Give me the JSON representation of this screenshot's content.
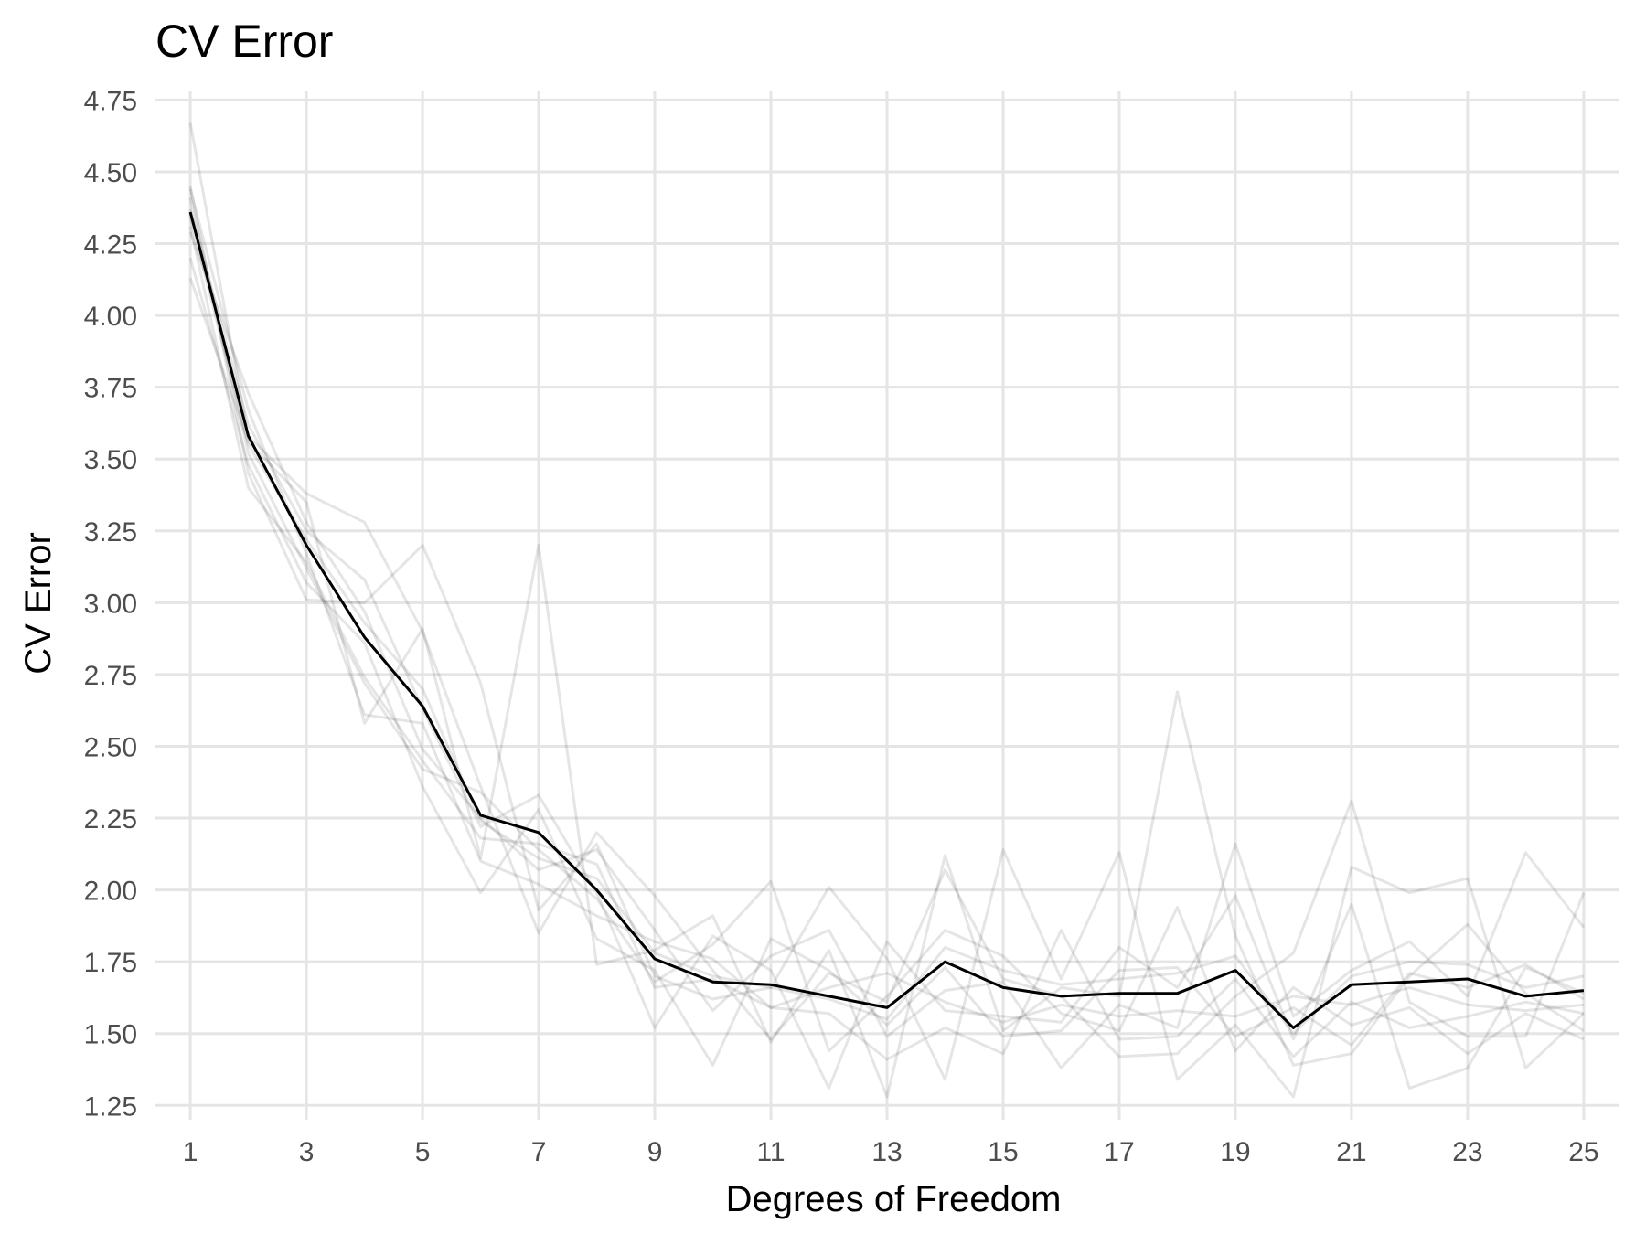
{
  "chart_data": {
    "type": "line",
    "title": "CV Error",
    "xlabel": "Degrees of Freedom",
    "ylabel": "CV Error",
    "xlim": [
      0.4,
      25.6
    ],
    "ylim": [
      1.2,
      4.78
    ],
    "xticks": [
      1,
      3,
      5,
      7,
      9,
      11,
      13,
      15,
      17,
      19,
      21,
      23,
      25
    ],
    "yticks": [
      1.25,
      1.5,
      1.75,
      2.0,
      2.25,
      2.5,
      2.75,
      3.0,
      3.25,
      3.5,
      3.75,
      4.0,
      4.25,
      4.5,
      4.75
    ],
    "ytick_labels": [
      "1.25",
      "1.50",
      "1.75",
      "2.00",
      "2.25",
      "2.50",
      "2.75",
      "3.00",
      "3.25",
      "3.50",
      "3.75",
      "4.00",
      "4.25",
      "4.50",
      "4.75"
    ],
    "grid": true,
    "legend": "none",
    "x": [
      1,
      2,
      3,
      4,
      5,
      6,
      7,
      8,
      9,
      10,
      11,
      12,
      13,
      14,
      15,
      16,
      17,
      18,
      19,
      20,
      21,
      22,
      23,
      24,
      25
    ],
    "mean_series": {
      "color": "#000000",
      "values": [
        4.36,
        3.58,
        3.2,
        2.88,
        2.64,
        2.26,
        2.2,
        2.0,
        1.76,
        1.68,
        1.67,
        1.63,
        1.59,
        1.75,
        1.66,
        1.63,
        1.64,
        1.64,
        1.72,
        1.52,
        1.67,
        1.68,
        1.69,
        1.63,
        1.65
      ]
    },
    "fold_series_color": "#000000",
    "fold_series_opacity": 0.1,
    "fold_series": [
      {
        "values": [
          4.67,
          3.58,
          3.38,
          3.28,
          2.9,
          2.36,
          1.85,
          2.2,
          1.98,
          1.72,
          1.48,
          1.71,
          1.61,
          2.07,
          1.69,
          1.63,
          1.42,
          1.43,
          1.63,
          1.78,
          2.31,
          1.61,
          1.49,
          1.49,
          1.99
        ]
      },
      {
        "values": [
          4.45,
          3.45,
          3.01,
          3.0,
          3.2,
          2.72,
          1.93,
          2.16,
          1.7,
          1.62,
          1.66,
          2.01,
          1.76,
          1.34,
          2.14,
          1.69,
          2.13,
          1.34,
          1.53,
          1.28,
          2.08,
          1.99,
          2.04,
          1.38,
          1.57
        ]
      },
      {
        "values": [
          4.13,
          3.56,
          3.35,
          2.58,
          2.91,
          2.11,
          3.2,
          1.74,
          1.79,
          1.91,
          1.47,
          1.79,
          1.28,
          2.12,
          1.51,
          1.66,
          1.63,
          2.69,
          1.84,
          1.39,
          1.43,
          1.7,
          1.88,
          1.64,
          1.51
        ]
      },
      {
        "values": [
          4.29,
          3.73,
          3.28,
          2.97,
          2.49,
          2.25,
          2.07,
          2.14,
          1.86,
          1.58,
          1.77,
          1.86,
          1.49,
          1.65,
          1.68,
          1.38,
          1.6,
          1.52,
          2.16,
          1.56,
          1.72,
          1.82,
          1.63,
          2.13,
          1.87
        ]
      },
      {
        "values": [
          4.37,
          3.62,
          3.25,
          3.08,
          2.63,
          2.22,
          2.33,
          1.99,
          1.52,
          1.84,
          1.72,
          1.31,
          1.82,
          1.58,
          1.56,
          1.54,
          1.8,
          1.66,
          1.98,
          1.48,
          1.95,
          1.31,
          1.38,
          1.73,
          1.64
        ]
      },
      {
        "values": [
          4.41,
          3.52,
          3.12,
          2.72,
          2.42,
          2.34,
          2.14,
          1.97,
          1.68,
          1.81,
          2.03,
          1.44,
          1.63,
          1.86,
          1.77,
          1.57,
          1.51,
          1.94,
          1.44,
          1.66,
          1.53,
          1.59,
          1.43,
          1.57,
          1.48
        ]
      },
      {
        "values": [
          4.2,
          3.48,
          3.07,
          2.86,
          2.36,
          1.99,
          2.28,
          1.83,
          1.72,
          1.39,
          1.83,
          1.72,
          1.53,
          1.73,
          1.49,
          1.51,
          1.72,
          1.73,
          1.49,
          1.59,
          1.46,
          1.71,
          1.66,
          1.74,
          1.62
        ]
      },
      {
        "values": [
          4.44,
          3.67,
          3.17,
          2.61,
          2.58,
          2.1,
          2.02,
          1.91,
          1.82,
          1.76,
          1.59,
          1.57,
          1.41,
          1.52,
          1.43,
          1.86,
          1.48,
          1.49,
          1.69,
          1.42,
          1.61,
          1.52,
          1.56,
          1.61,
          1.57
        ]
      },
      {
        "values": [
          4.31,
          3.4,
          3.14,
          2.74,
          2.45,
          2.18,
          2.16,
          2.09,
          1.66,
          1.69,
          1.59,
          1.66,
          1.71,
          1.61,
          1.54,
          1.6,
          1.56,
          1.58,
          1.56,
          1.63,
          1.6,
          1.66,
          1.6,
          1.58,
          1.6
        ]
      },
      {
        "values": [
          4.34,
          3.55,
          3.22,
          2.93,
          2.7,
          2.24,
          2.11,
          2.04,
          1.78,
          1.7,
          1.66,
          1.62,
          1.55,
          1.8,
          1.72,
          1.67,
          1.69,
          1.71,
          1.77,
          1.5,
          1.7,
          1.75,
          1.74,
          1.66,
          1.7
        ]
      }
    ]
  }
}
